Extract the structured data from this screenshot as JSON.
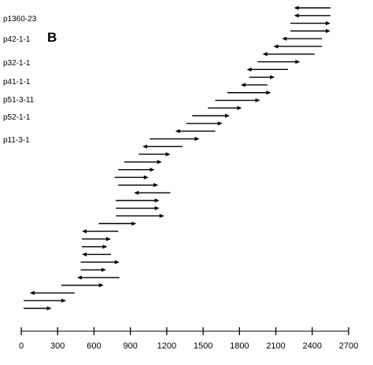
{
  "panel_letter": "B",
  "clone_labels": [
    "p1360-23",
    "p42-1-1",
    "p32-1-1",
    "p41-1-1",
    "p51-3-11",
    "p52-1-1",
    "p11-3-1"
  ],
  "axis": {
    "min": 0,
    "max": 2700,
    "tick_values": [
      0,
      300,
      600,
      900,
      1200,
      1500,
      1800,
      2100,
      2400,
      2700
    ],
    "tick_labels": [
      "0",
      "300",
      "600",
      "900",
      "1200",
      "1500",
      "1800",
      "2100",
      "2400",
      "2700"
    ]
  },
  "reads": [
    {
      "from": 2550,
      "to": 2250
    },
    {
      "from": 2550,
      "to": 2250
    },
    {
      "from": 2220,
      "to": 2550
    },
    {
      "from": 2220,
      "to": 2550
    },
    {
      "from": 2480,
      "to": 2150
    },
    {
      "from": 2480,
      "to": 2080
    },
    {
      "from": 2420,
      "to": 1990
    },
    {
      "from": 1950,
      "to": 2300
    },
    {
      "from": 2200,
      "to": 1860
    },
    {
      "from": 1880,
      "to": 2090
    },
    {
      "from": 2030,
      "to": 1810
    },
    {
      "from": 1700,
      "to": 2060
    },
    {
      "from": 1600,
      "to": 1970
    },
    {
      "from": 1540,
      "to": 1820
    },
    {
      "from": 1410,
      "to": 1720
    },
    {
      "from": 1360,
      "to": 1660
    },
    {
      "from": 1600,
      "to": 1270
    },
    {
      "from": 1060,
      "to": 1470
    },
    {
      "from": 1330,
      "to": 1000
    },
    {
      "from": 970,
      "to": 1230
    },
    {
      "from": 850,
      "to": 1160
    },
    {
      "from": 800,
      "to": 1100
    },
    {
      "from": 770,
      "to": 1050
    },
    {
      "from": 800,
      "to": 1130
    },
    {
      "from": 1230,
      "to": 930
    },
    {
      "from": 780,
      "to": 1140
    },
    {
      "from": 780,
      "to": 1140
    },
    {
      "from": 780,
      "to": 1180
    },
    {
      "from": 640,
      "to": 950
    },
    {
      "from": 800,
      "to": 500
    },
    {
      "from": 500,
      "to": 740
    },
    {
      "from": 500,
      "to": 710
    },
    {
      "from": 740,
      "to": 500
    },
    {
      "from": 490,
      "to": 810
    },
    {
      "from": 490,
      "to": 700
    },
    {
      "from": 810,
      "to": 460
    },
    {
      "from": 330,
      "to": 680
    },
    {
      "from": 440,
      "to": 70
    },
    {
      "from": 20,
      "to": 370
    },
    {
      "from": 20,
      "to": 250
    }
  ]
}
